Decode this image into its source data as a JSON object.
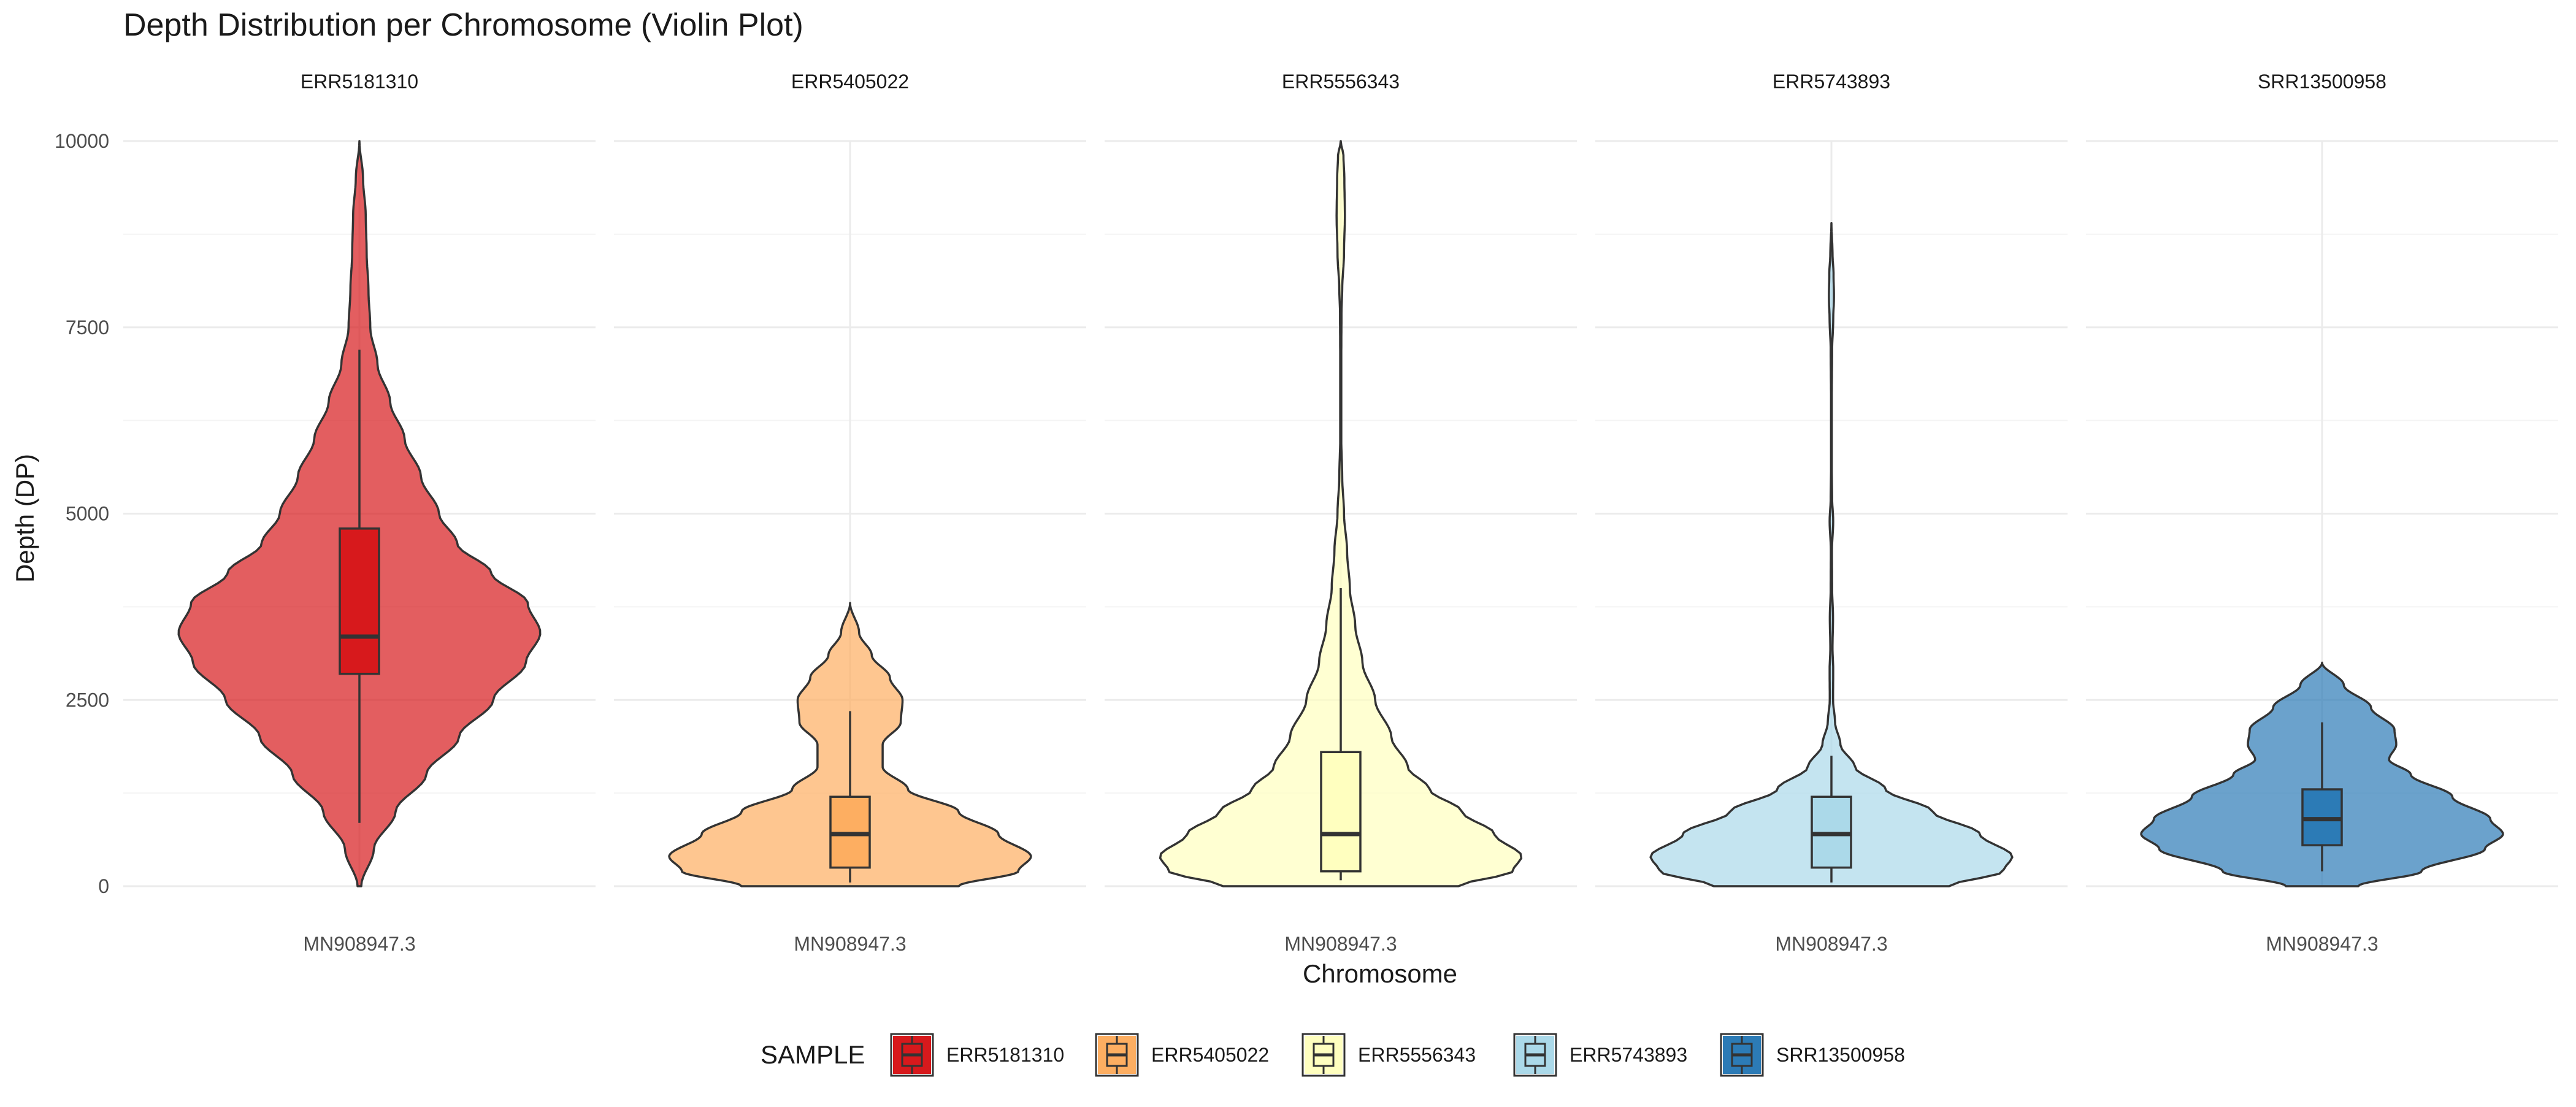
{
  "chart_data": {
    "type": "violin",
    "title": "Depth Distribution per Chromosome (Violin Plot)",
    "xlabel": "Chromosome",
    "ylabel": "Depth (DP)",
    "ylim": [
      0,
      10000
    ],
    "y_ticks": [
      0,
      2500,
      5000,
      7500,
      10000
    ],
    "y_tick_labels": [
      "0",
      "2500",
      "5000",
      "7500",
      "10000"
    ],
    "category": "MN908947.3",
    "grid": true,
    "legend": {
      "title": "SAMPLE",
      "position": "bottom",
      "items": [
        {
          "label": "ERR5181310",
          "color": "#d7191c"
        },
        {
          "label": "ERR5405022",
          "color": "#fdae61"
        },
        {
          "label": "ERR5556343",
          "color": "#ffffbf"
        },
        {
          "label": "ERR5743893",
          "color": "#abd9e9"
        },
        {
          "label": "SRR13500958",
          "color": "#2c7bb6"
        }
      ]
    },
    "panels": [
      {
        "sample": "ERR5181310",
        "color": "#d7191c",
        "violin_range": [
          0,
          10000
        ],
        "density_profile": [
          [
            0,
            0.01
          ],
          [
            500,
            0.08
          ],
          [
            1000,
            0.2
          ],
          [
            1500,
            0.37
          ],
          [
            2000,
            0.55
          ],
          [
            2500,
            0.74
          ],
          [
            3000,
            0.92
          ],
          [
            3400,
            1.0
          ],
          [
            3800,
            0.93
          ],
          [
            4200,
            0.73
          ],
          [
            4600,
            0.54
          ],
          [
            5000,
            0.44
          ],
          [
            5500,
            0.34
          ],
          [
            6000,
            0.25
          ],
          [
            6500,
            0.17
          ],
          [
            7000,
            0.1
          ],
          [
            7500,
            0.06
          ],
          [
            8000,
            0.05
          ],
          [
            8500,
            0.04
          ],
          [
            9000,
            0.035
          ],
          [
            9500,
            0.02
          ],
          [
            10000,
            0.0
          ]
        ],
        "box": {
          "q1": 2850,
          "median": 3350,
          "q3": 4800,
          "whisker_low": 850,
          "whisker_high": 7200
        }
      },
      {
        "sample": "ERR5405022",
        "color": "#fdae61",
        "violin_range": [
          0,
          3800
        ],
        "density_profile": [
          [
            0,
            0.6
          ],
          [
            200,
            0.93
          ],
          [
            400,
            1.0
          ],
          [
            700,
            0.82
          ],
          [
            1000,
            0.6
          ],
          [
            1300,
            0.32
          ],
          [
            1600,
            0.18
          ],
          [
            1900,
            0.18
          ],
          [
            2200,
            0.28
          ],
          [
            2500,
            0.29
          ],
          [
            2800,
            0.22
          ],
          [
            3100,
            0.12
          ],
          [
            3400,
            0.05
          ],
          [
            3800,
            0.0
          ]
        ],
        "box": {
          "q1": 250,
          "median": 700,
          "q3": 1200,
          "whisker_low": 50,
          "whisker_high": 2350
        }
      },
      {
        "sample": "ERR5556343",
        "color": "#ffffbf",
        "violin_range": [
          0,
          10000
        ],
        "density_profile": [
          [
            0,
            0.65
          ],
          [
            200,
            0.95
          ],
          [
            400,
            1.0
          ],
          [
            700,
            0.85
          ],
          [
            1000,
            0.67
          ],
          [
            1300,
            0.49
          ],
          [
            1600,
            0.37
          ],
          [
            2000,
            0.28
          ],
          [
            2500,
            0.19
          ],
          [
            3000,
            0.12
          ],
          [
            3500,
            0.08
          ],
          [
            4000,
            0.05
          ],
          [
            4500,
            0.035
          ],
          [
            5000,
            0.018
          ],
          [
            5500,
            0.008
          ],
          [
            6000,
            0.003
          ],
          [
            7000,
            0.003
          ],
          [
            7700,
            0.004
          ],
          [
            8000,
            0.008
          ],
          [
            8500,
            0.018
          ],
          [
            9000,
            0.023
          ],
          [
            9500,
            0.02
          ],
          [
            9800,
            0.015
          ],
          [
            10000,
            0.0
          ]
        ],
        "box": {
          "q1": 200,
          "median": 700,
          "q3": 1800,
          "whisker_low": 80,
          "whisker_high": 4000
        }
      },
      {
        "sample": "ERR5743893",
        "color": "#abd9e9",
        "violin_range": [
          0,
          8900
        ],
        "density_profile": [
          [
            0,
            0.65
          ],
          [
            200,
            0.95
          ],
          [
            400,
            1.0
          ],
          [
            700,
            0.82
          ],
          [
            1000,
            0.56
          ],
          [
            1300,
            0.3
          ],
          [
            1600,
            0.13
          ],
          [
            1900,
            0.05
          ],
          [
            2200,
            0.02
          ],
          [
            2500,
            0.009
          ],
          [
            2900,
            0.01
          ],
          [
            3200,
            0.006
          ],
          [
            3600,
            0.009
          ],
          [
            4000,
            0.004
          ],
          [
            4500,
            0.003
          ],
          [
            4900,
            0.01
          ],
          [
            5200,
            0.004
          ],
          [
            5600,
            0.002
          ],
          [
            6500,
            0.002
          ],
          [
            7200,
            0.004
          ],
          [
            7600,
            0.01
          ],
          [
            7900,
            0.014
          ],
          [
            8200,
            0.012
          ],
          [
            8500,
            0.006
          ],
          [
            8900,
            0.0
          ]
        ],
        "box": {
          "q1": 250,
          "median": 700,
          "q3": 1200,
          "whisker_low": 50,
          "whisker_high": 1750
        }
      },
      {
        "sample": "SRR13500958",
        "color": "#2c7bb6",
        "violin_range": [
          0,
          3000
        ],
        "density_profile": [
          [
            0,
            0.2
          ],
          [
            200,
            0.55
          ],
          [
            500,
            0.9
          ],
          [
            700,
            1.0
          ],
          [
            900,
            0.93
          ],
          [
            1200,
            0.72
          ],
          [
            1500,
            0.49
          ],
          [
            1700,
            0.37
          ],
          [
            1900,
            0.41
          ],
          [
            2100,
            0.4
          ],
          [
            2400,
            0.27
          ],
          [
            2700,
            0.12
          ],
          [
            3000,
            0.0
          ]
        ],
        "box": {
          "q1": 550,
          "median": 900,
          "q3": 1300,
          "whisker_low": 200,
          "whisker_high": 2200
        }
      }
    ]
  }
}
